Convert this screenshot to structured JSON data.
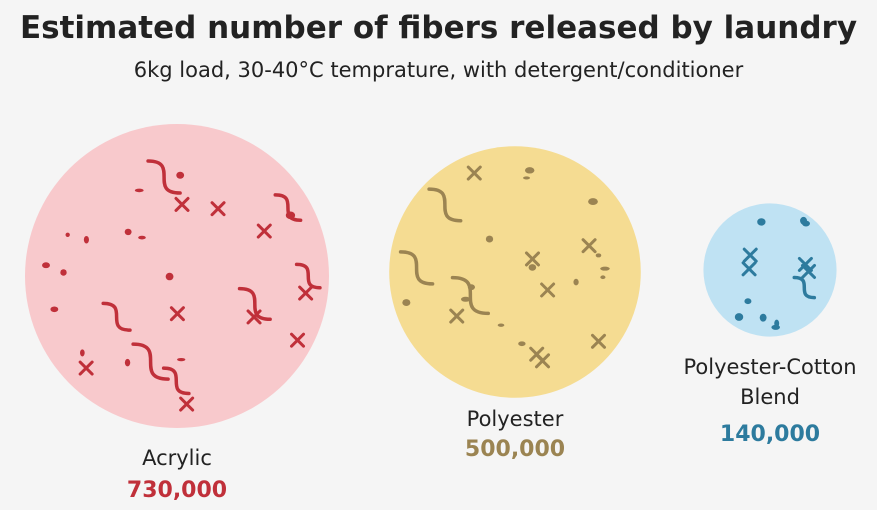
{
  "chart_data": {
    "type": "bubble",
    "title": "Estimated number of fibers released by laundry",
    "subtitle": "6kg load, 30-40°C temprature, with detergent/conditioner",
    "categories": [
      "Acrylic",
      "Polyester",
      "Polyester-Cotton Blend"
    ],
    "values": [
      730000,
      500000,
      140000
    ],
    "value_labels": [
      "730,000",
      "500,000",
      "140,000"
    ],
    "colors": [
      "#f8c9cc",
      "#f5dc92",
      "#bfe2f3"
    ],
    "mark_colors": [
      "#c0303a",
      "#9b8452",
      "#2d7b9e"
    ]
  }
}
